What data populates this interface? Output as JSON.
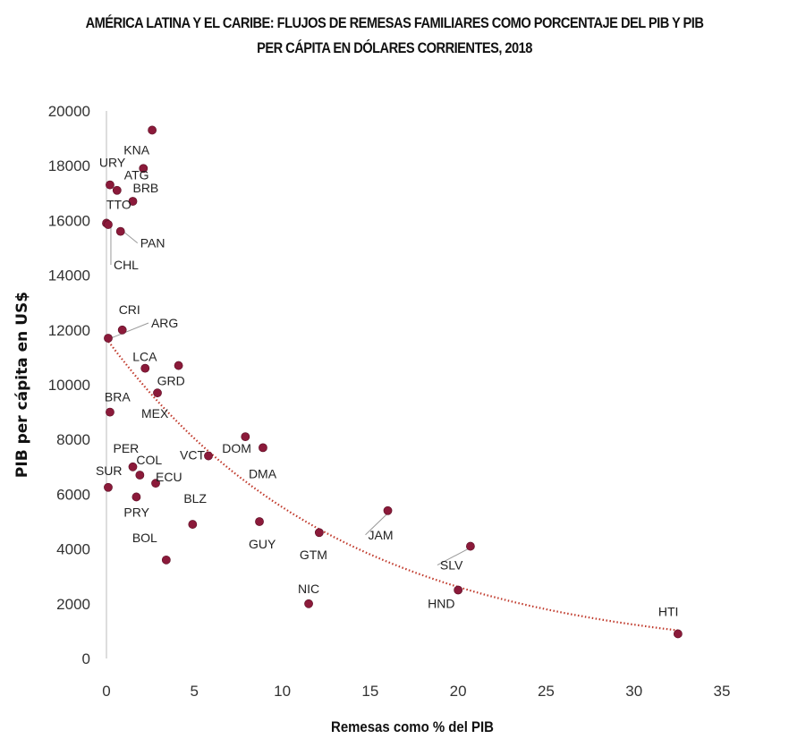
{
  "chart_data": {
    "type": "scatter",
    "title_lines": [
      "AMÉRICA LATINA Y EL CARIBE: FLUJOS DE REMESAS FAMILIARES COMO PORCENTAJE DEL PIB Y PIB",
      "PER CÁPITA EN DÓLARES CORRIENTES, 2018"
    ],
    "xlabel": "Remesas como % del PIB",
    "ylabel": "PIB per cápita en US$",
    "xlim": [
      0,
      35
    ],
    "ylim": [
      0,
      20000
    ],
    "xticks": [
      "0",
      "5",
      "10",
      "15",
      "20",
      "25",
      "30",
      "35"
    ],
    "yticks": [
      "0",
      "2000",
      "4000",
      "6000",
      "8000",
      "10000",
      "12000",
      "14000",
      "16000",
      "18000",
      "20000"
    ],
    "marker_color": "#8b1a3a",
    "trendline": {
      "type": "exponential",
      "style": "dotted",
      "color": "#c0392b"
    },
    "points": [
      {
        "label": "URY",
        "x": 0.2,
        "y": 17300
      },
      {
        "label": "KNA",
        "x": 2.1,
        "y": 17900
      },
      {
        "label": "ATG",
        "x": 0.6,
        "y": 17100
      },
      {
        "label": "BRB",
        "x": 1.5,
        "y": 16700
      },
      {
        "label": "TTO",
        "x": 0.0,
        "y": 15900
      },
      {
        "label": "PAN",
        "x": 0.8,
        "y": 15600
      },
      {
        "label": "CHL",
        "x": 0.1,
        "y": 15850
      },
      {
        "label": "",
        "x": 2.6,
        "y": 19300
      },
      {
        "label": "CRI",
        "x": 0.9,
        "y": 12000
      },
      {
        "label": "ARG",
        "x": 0.1,
        "y": 11700
      },
      {
        "label": "LCA",
        "x": 2.2,
        "y": 10600
      },
      {
        "label": "GRD",
        "x": 4.1,
        "y": 10700
      },
      {
        "label": "MEX",
        "x": 2.9,
        "y": 9700
      },
      {
        "label": "BRA",
        "x": 0.2,
        "y": 9000
      },
      {
        "label": "DOM",
        "x": 7.9,
        "y": 8100
      },
      {
        "label": "DMA",
        "x": 8.9,
        "y": 7700
      },
      {
        "label": "VCT",
        "x": 5.8,
        "y": 7400
      },
      {
        "label": "PER",
        "x": 1.5,
        "y": 7000
      },
      {
        "label": "COL",
        "x": 1.9,
        "y": 6700
      },
      {
        "label": "ECU",
        "x": 2.8,
        "y": 6400
      },
      {
        "label": "SUR",
        "x": 0.1,
        "y": 6250
      },
      {
        "label": "PRY",
        "x": 1.7,
        "y": 5900
      },
      {
        "label": "BLZ",
        "x": 4.9,
        "y": 4900
      },
      {
        "label": "GUY",
        "x": 8.7,
        "y": 5000
      },
      {
        "label": "JAM",
        "x": 16.0,
        "y": 5400
      },
      {
        "label": "GTM",
        "x": 12.1,
        "y": 4600
      },
      {
        "label": "BOL",
        "x": 3.4,
        "y": 3600
      },
      {
        "label": "SLV",
        "x": 20.7,
        "y": 4100
      },
      {
        "label": "NIC",
        "x": 11.5,
        "y": 2000
      },
      {
        "label": "HND",
        "x": 20.0,
        "y": 2500
      },
      {
        "label": "HTI",
        "x": 32.5,
        "y": 900
      }
    ]
  }
}
